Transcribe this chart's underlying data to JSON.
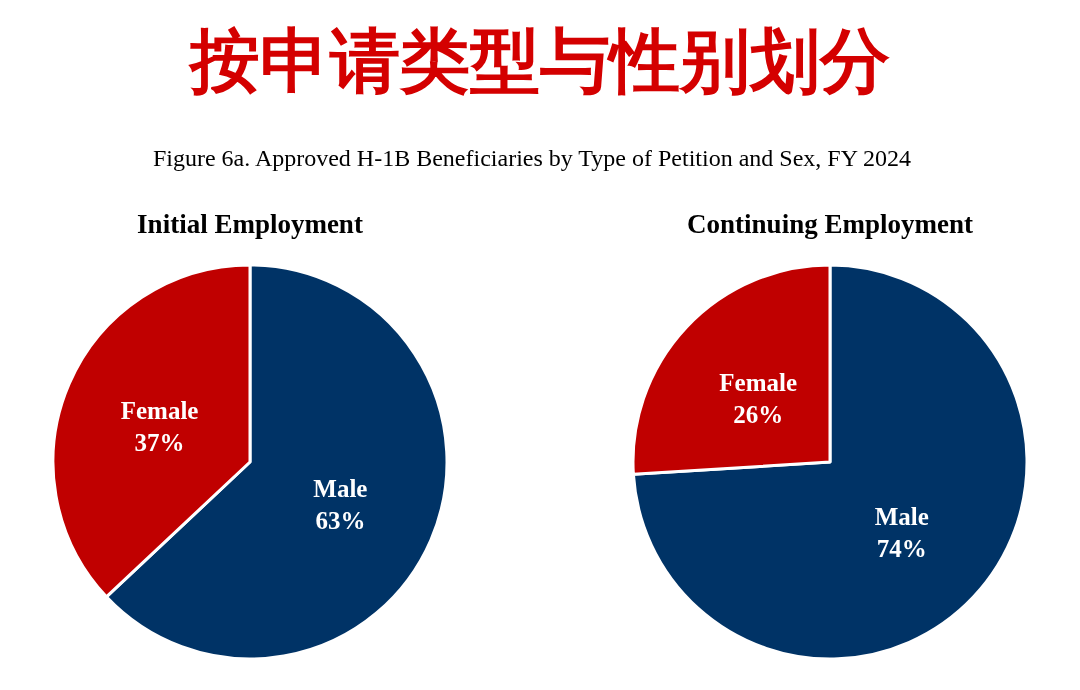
{
  "chart_data": [
    {
      "type": "other",
      "title": "按申请类型与性别划分",
      "subtitle": "Figure 6a. Approved H-1B Beneficiaries by Type of Petition and Sex, FY 2024"
    },
    {
      "type": "pie",
      "title": "Initial Employment",
      "categories": [
        "Male",
        "Female"
      ],
      "values": [
        63,
        37
      ],
      "colors": [
        "#003366",
        "#c00000"
      ],
      "value_labels": [
        "63%",
        "37%"
      ]
    },
    {
      "type": "pie",
      "title": "Continuing Employment",
      "categories": [
        "Male",
        "Female"
      ],
      "values": [
        74,
        26
      ],
      "colors": [
        "#003366",
        "#c00000"
      ],
      "value_labels": [
        "74%",
        "26%"
      ]
    }
  ]
}
